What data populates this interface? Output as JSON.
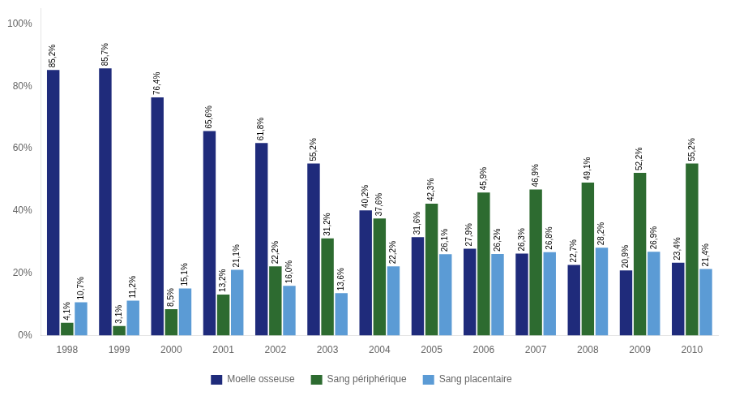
{
  "chart_data": {
    "type": "bar",
    "categories": [
      "1998",
      "1999",
      "2000",
      "2001",
      "2002",
      "2003",
      "2004",
      "2005",
      "2006",
      "2007",
      "2008",
      "2009",
      "2010"
    ],
    "series": [
      {
        "name": "Moelle osseuse",
        "color": "#1F2B7B",
        "values": [
          85.2,
          85.7,
          76.4,
          65.6,
          61.8,
          55.2,
          40.2,
          31.6,
          27.9,
          26.3,
          22.7,
          20.9,
          23.4
        ],
        "value_labels": [
          "85,2%",
          "85,7%",
          "76,4%",
          "65,6%",
          "61,8%",
          "55,2%",
          "40,2%",
          "31,6%",
          "27,9%",
          "26,3%",
          "22,7%",
          "20,9%",
          "23,4%"
        ]
      },
      {
        "name": "Sang périphérique",
        "color": "#2D6B30",
        "values": [
          4.1,
          3.1,
          8.5,
          13.2,
          22.2,
          31.2,
          37.6,
          42.3,
          45.9,
          46.9,
          49.1,
          52.2,
          55.2
        ],
        "value_labels": [
          "4,1%",
          "3,1%",
          "8,5%",
          "13,2%",
          "22,2%",
          "31,2%",
          "37,6%",
          "42,3%",
          "45,9%",
          "46,9%",
          "49,1%",
          "52,2%",
          "55,2%"
        ]
      },
      {
        "name": "Sang placentaire",
        "color": "#5B9BD5",
        "values": [
          10.7,
          11.2,
          15.1,
          21.1,
          16.0,
          13.6,
          22.2,
          26.1,
          26.2,
          26.8,
          28.2,
          26.9,
          21.4
        ],
        "value_labels": [
          "10,7%",
          "11,2%",
          "15,1%",
          "21,1%",
          "16,0%",
          "13,6%",
          "22,2%",
          "26,1%",
          "26,2%",
          "26,8%",
          "28,2%",
          "26,9%",
          "21,4%"
        ]
      }
    ],
    "ylim": [
      0,
      105
    ],
    "yticks": [
      {
        "value": 0,
        "label": "0%"
      },
      {
        "value": 20,
        "label": "20%"
      },
      {
        "value": 40,
        "label": "40%"
      },
      {
        "value": 60,
        "label": "60%"
      },
      {
        "value": 80,
        "label": "80%"
      },
      {
        "value": 100,
        "label": "100%"
      }
    ],
    "grid": false,
    "legend": "bottom",
    "data_labels": true
  }
}
